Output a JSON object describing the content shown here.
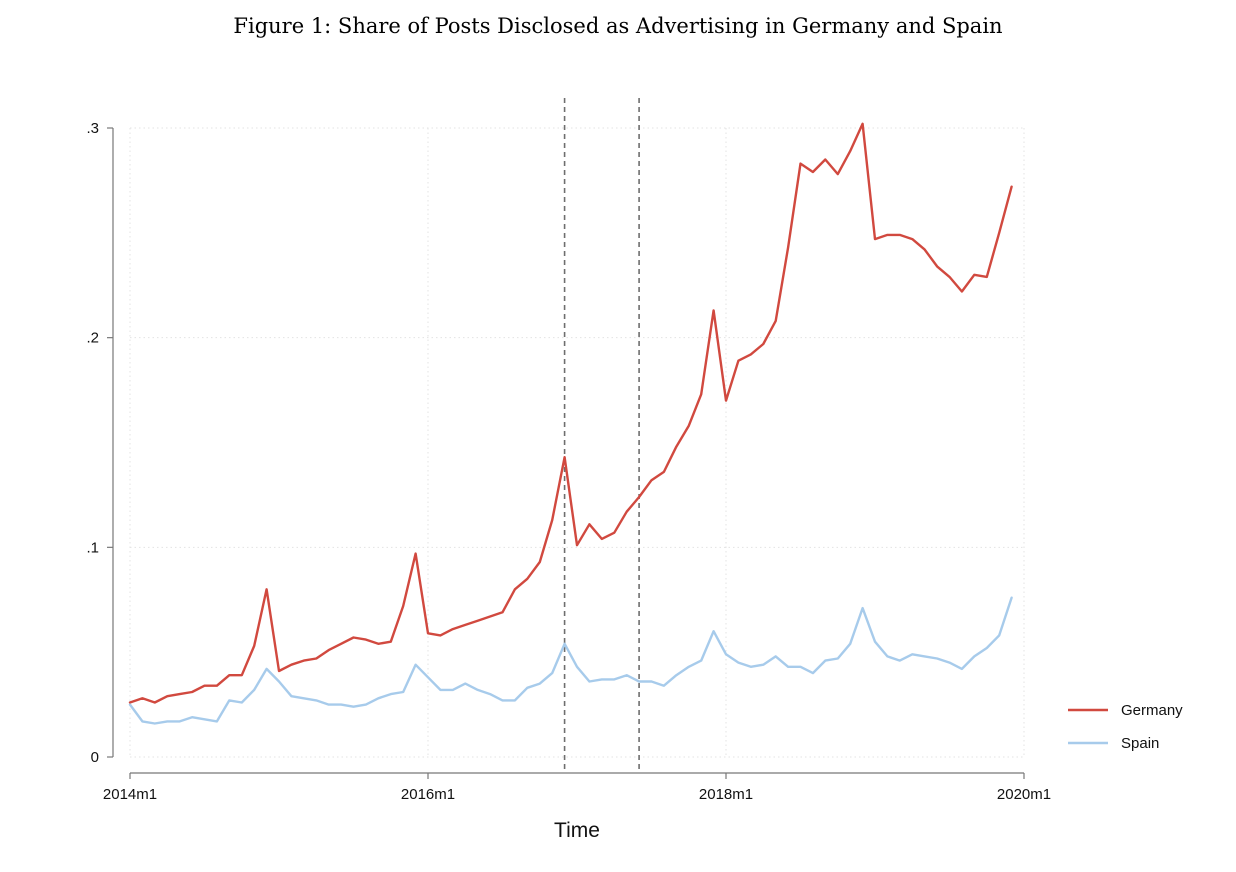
{
  "figure": {
    "title": "Figure 1: Share of Posts Disclosed as Advertising in Germany and Spain"
  },
  "chart_data": {
    "type": "line",
    "title": "",
    "xlabel": "Time",
    "ylabel": "",
    "x_start": "2014m1",
    "xlim": [
      "2014m1",
      "2020m1"
    ],
    "ylim": [
      0,
      0.3
    ],
    "yticks": [
      0,
      0.1,
      0.2,
      0.3
    ],
    "ytick_labels": [
      "0",
      ".1",
      ".2",
      ".3"
    ],
    "xticks": [
      "2014m1",
      "2016m1",
      "2018m1",
      "2020m1"
    ],
    "grid": true,
    "legend_position": "right",
    "vertical_reference_lines": [
      "2016m12",
      "2017m6"
    ],
    "series": [
      {
        "name": "Germany",
        "color": "#d1493f",
        "values": [
          0.026,
          0.028,
          0.026,
          0.029,
          0.03,
          0.031,
          0.034,
          0.034,
          0.039,
          0.039,
          0.053,
          0.08,
          0.041,
          0.044,
          0.046,
          0.047,
          0.051,
          0.054,
          0.057,
          0.056,
          0.054,
          0.055,
          0.072,
          0.097,
          0.059,
          0.058,
          0.061,
          0.063,
          0.065,
          0.067,
          0.069,
          0.08,
          0.085,
          0.093,
          0.113,
          0.143,
          0.101,
          0.111,
          0.104,
          0.107,
          0.117,
          0.124,
          0.132,
          0.136,
          0.148,
          0.158,
          0.173,
          0.213,
          0.17,
          0.189,
          0.192,
          0.197,
          0.208,
          0.243,
          0.283,
          0.279,
          0.285,
          0.278,
          0.289,
          0.302,
          0.247,
          0.249,
          0.249,
          0.247,
          0.242,
          0.234,
          0.229,
          0.222,
          0.23,
          0.229,
          0.25,
          0.272
        ]
      },
      {
        "name": "Spain",
        "color": "#a7cbeb",
        "values": [
          0.025,
          0.017,
          0.016,
          0.017,
          0.017,
          0.019,
          0.018,
          0.017,
          0.027,
          0.026,
          0.032,
          0.042,
          0.036,
          0.029,
          0.028,
          0.027,
          0.025,
          0.025,
          0.024,
          0.025,
          0.028,
          0.03,
          0.031,
          0.044,
          0.038,
          0.032,
          0.032,
          0.035,
          0.032,
          0.03,
          0.027,
          0.027,
          0.033,
          0.035,
          0.04,
          0.054,
          0.043,
          0.036,
          0.037,
          0.037,
          0.039,
          0.036,
          0.036,
          0.034,
          0.039,
          0.043,
          0.046,
          0.06,
          0.049,
          0.045,
          0.043,
          0.044,
          0.048,
          0.043,
          0.043,
          0.04,
          0.046,
          0.047,
          0.054,
          0.071,
          0.055,
          0.048,
          0.046,
          0.049,
          0.048,
          0.047,
          0.045,
          0.042,
          0.048,
          0.052,
          0.058,
          0.076
        ]
      }
    ]
  }
}
